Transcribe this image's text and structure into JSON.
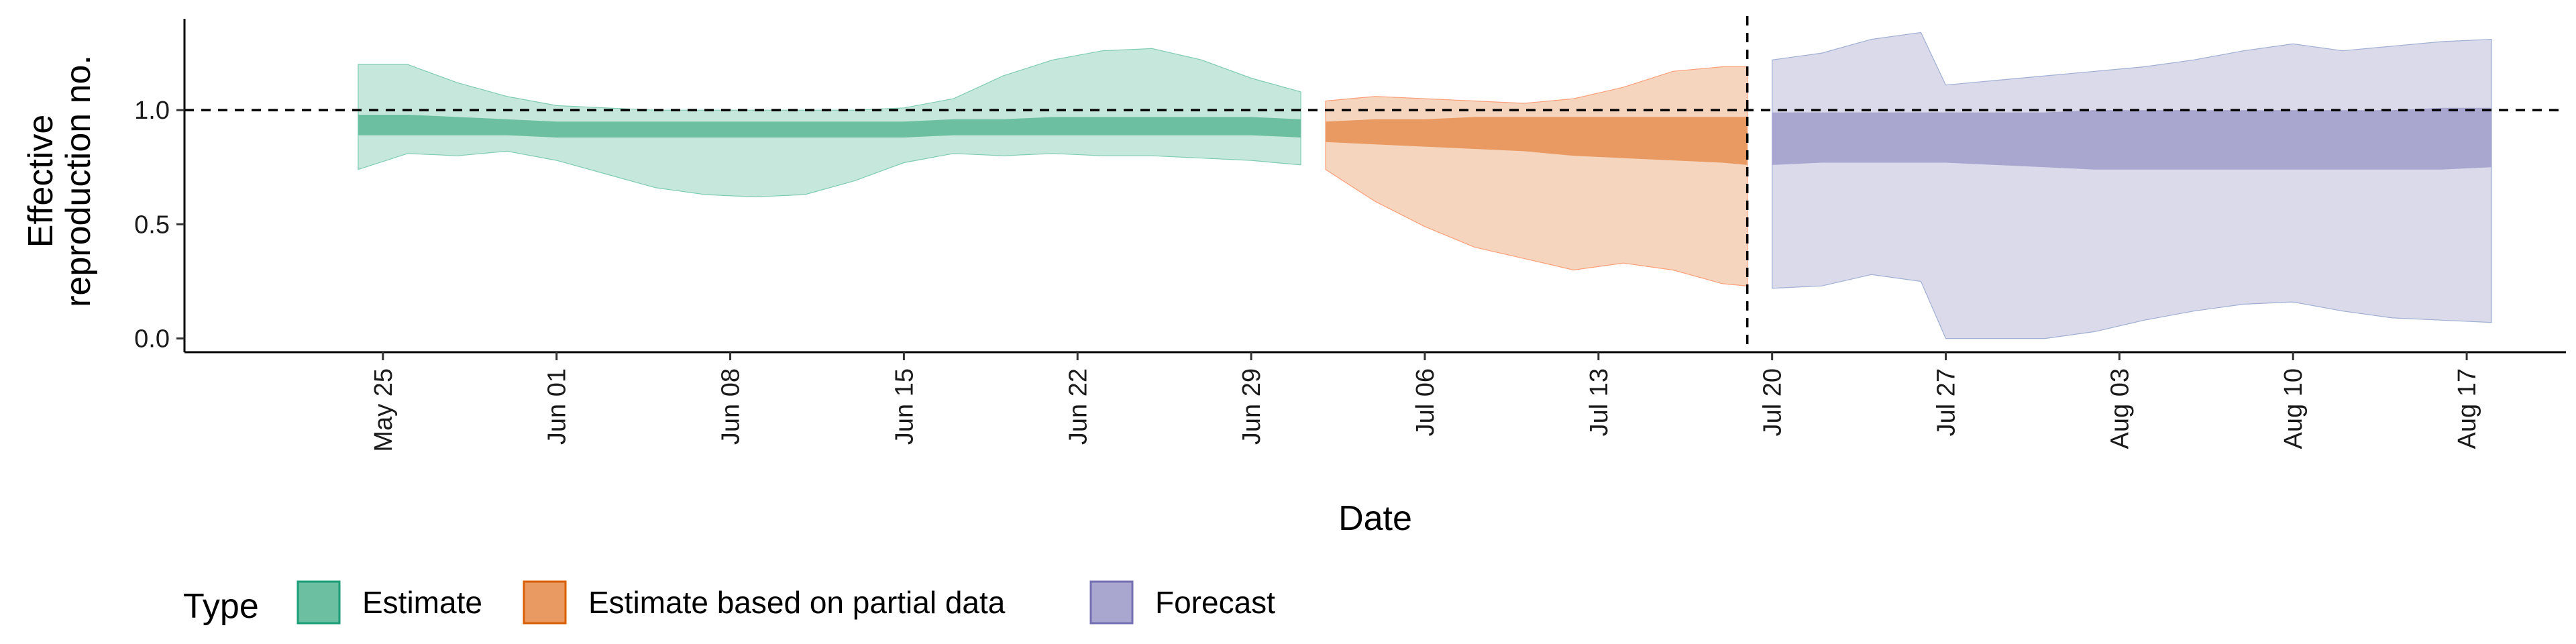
{
  "chart_data": {
    "type": "area",
    "xlabel": "Date",
    "ylabel_lines": [
      "Effective",
      "reproduction no."
    ],
    "y_ticks": [
      "0.0",
      "0.5",
      "1.0"
    ],
    "y_tick_values": [
      0.0,
      0.5,
      1.0
    ],
    "ylim": [
      -0.06,
      1.4
    ],
    "xlim": [
      "2020-05-17",
      "2020-08-21"
    ],
    "x_ticks": [
      "May 25",
      "Jun 01",
      "Jun 08",
      "Jun 15",
      "Jun 22",
      "Jun 29",
      "Jul 06",
      "Jul 13",
      "Jul 20",
      "Jul 27",
      "Aug 03",
      "Aug 10",
      "Aug 17"
    ],
    "x_tick_dates": [
      "2020-05-25",
      "2020-06-01",
      "2020-06-08",
      "2020-06-15",
      "2020-06-22",
      "2020-06-29",
      "2020-07-06",
      "2020-07-13",
      "2020-07-20",
      "2020-07-27",
      "2020-08-03",
      "2020-08-10",
      "2020-08-17"
    ],
    "reference_line": {
      "y": 1.0,
      "style": "dashed"
    },
    "vertical_line": {
      "x": "2020-07-19",
      "style": "dashed"
    },
    "legend": {
      "title": "Type",
      "position": "bottom"
    },
    "series": [
      {
        "name": "Estimate",
        "color_fill": "#66c2a5",
        "color_outer": "#c6e8dc",
        "color_inner": "#6cbfa1",
        "x": [
          "2020-05-24",
          "2020-05-26",
          "2020-05-28",
          "2020-05-30",
          "2020-06-01",
          "2020-06-03",
          "2020-06-05",
          "2020-06-07",
          "2020-06-09",
          "2020-06-11",
          "2020-06-13",
          "2020-06-15",
          "2020-06-17",
          "2020-06-19",
          "2020-06-21",
          "2020-06-23",
          "2020-06-25",
          "2020-06-27",
          "2020-06-29",
          "2020-07-01"
        ],
        "outer_upper": [
          1.2,
          1.2,
          1.12,
          1.06,
          1.02,
          1.01,
          1.0,
          1.0,
          1.0,
          1.0,
          1.0,
          1.01,
          1.05,
          1.15,
          1.22,
          1.26,
          1.27,
          1.22,
          1.14,
          1.08
        ],
        "outer_lower": [
          0.74,
          0.81,
          0.8,
          0.82,
          0.78,
          0.72,
          0.66,
          0.63,
          0.62,
          0.63,
          0.69,
          0.77,
          0.81,
          0.8,
          0.81,
          0.8,
          0.8,
          0.79,
          0.78,
          0.76
        ],
        "inner_upper": [
          0.98,
          0.98,
          0.97,
          0.96,
          0.95,
          0.95,
          0.95,
          0.95,
          0.95,
          0.95,
          0.95,
          0.95,
          0.96,
          0.96,
          0.97,
          0.97,
          0.97,
          0.97,
          0.97,
          0.96
        ],
        "inner_lower": [
          0.89,
          0.89,
          0.89,
          0.89,
          0.88,
          0.88,
          0.88,
          0.88,
          0.88,
          0.88,
          0.88,
          0.88,
          0.89,
          0.89,
          0.89,
          0.89,
          0.89,
          0.89,
          0.89,
          0.88
        ]
      },
      {
        "name": "Estimate based on partial data",
        "color_fill": "#fc8d62",
        "color_outer": "#f6d5be",
        "color_inner": "#e99a63",
        "x": [
          "2020-07-02",
          "2020-07-04",
          "2020-07-06",
          "2020-07-08",
          "2020-07-10",
          "2020-07-12",
          "2020-07-14",
          "2020-07-16",
          "2020-07-18",
          "2020-07-19"
        ],
        "outer_upper": [
          1.04,
          1.06,
          1.05,
          1.04,
          1.03,
          1.05,
          1.1,
          1.17,
          1.19,
          1.19
        ],
        "outer_lower": [
          0.74,
          0.6,
          0.49,
          0.4,
          0.35,
          0.3,
          0.33,
          0.3,
          0.24,
          0.23
        ],
        "inner_upper": [
          0.95,
          0.96,
          0.96,
          0.97,
          0.97,
          0.97,
          0.97,
          0.97,
          0.97,
          0.97
        ],
        "inner_lower": [
          0.86,
          0.85,
          0.84,
          0.83,
          0.82,
          0.8,
          0.79,
          0.78,
          0.77,
          0.76
        ]
      },
      {
        "name": "Forecast",
        "color_fill": "#8da0cb",
        "color_outer": "#dadaeb",
        "color_inner": "#a9a6cf",
        "x": [
          "2020-07-20",
          "2020-07-22",
          "2020-07-24",
          "2020-07-26",
          "2020-07-27",
          "2020-07-29",
          "2020-07-31",
          "2020-08-02",
          "2020-08-04",
          "2020-08-06",
          "2020-08-08",
          "2020-08-10",
          "2020-08-12",
          "2020-08-14",
          "2020-08-16",
          "2020-08-18"
        ],
        "outer_upper": [
          1.22,
          1.25,
          1.31,
          1.34,
          1.11,
          1.13,
          1.15,
          1.17,
          1.19,
          1.22,
          1.26,
          1.29,
          1.26,
          1.28,
          1.3,
          1.31
        ],
        "outer_lower": [
          0.22,
          0.23,
          0.28,
          0.25,
          0.0,
          0.0,
          0.0,
          0.03,
          0.08,
          0.12,
          0.15,
          0.16,
          0.12,
          0.09,
          0.08,
          0.07
        ],
        "inner_upper": [
          0.99,
          0.99,
          0.99,
          0.99,
          0.99,
          0.99,
          0.99,
          1.0,
          1.0,
          1.0,
          1.0,
          1.0,
          1.0,
          1.0,
          1.01,
          1.01
        ],
        "inner_lower": [
          0.76,
          0.77,
          0.77,
          0.77,
          0.77,
          0.76,
          0.75,
          0.74,
          0.74,
          0.74,
          0.74,
          0.74,
          0.74,
          0.74,
          0.74,
          0.75
        ]
      }
    ]
  }
}
